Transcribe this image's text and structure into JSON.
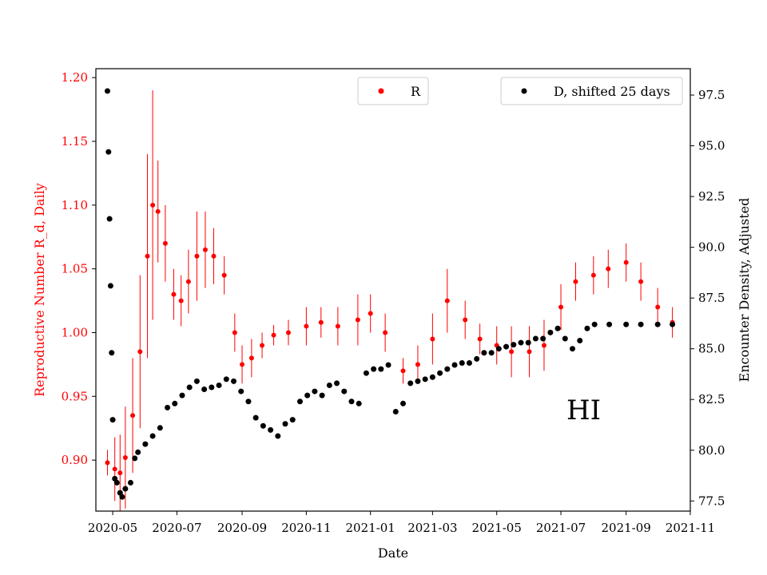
{
  "chart_data": {
    "type": "scatter",
    "xlabel": "Date",
    "x_ticks": [
      "2020-05",
      "2020-07",
      "2020-09",
      "2020-11",
      "2021-01",
      "2021-03",
      "2021-05",
      "2021-07",
      "2021-09",
      "2021-11"
    ],
    "xlim": [
      "2020-04-15",
      "2021-11-01"
    ],
    "left_axis": {
      "label": "Reproductive Number R_d, Daily",
      "color": "#ff0000",
      "ylim": [
        0.86,
        1.207
      ],
      "ticks": [
        "0.90",
        "0.95",
        "1.00",
        "1.05",
        "1.10",
        "1.15",
        "1.20"
      ]
    },
    "right_axis": {
      "label": "Encounter Density, Adjusted",
      "color": "#000000",
      "ylim": [
        77.0,
        98.8
      ],
      "ticks": [
        "77.5",
        "80.0",
        "82.5",
        "85.0",
        "87.5",
        "90.0",
        "92.5",
        "95.0",
        "97.5"
      ]
    },
    "annotation": "HI",
    "legend": [
      {
        "label": "R",
        "color": "#ff0000",
        "placement": "top-center"
      },
      {
        "label": "D, shifted 25 days",
        "color": "#000000",
        "placement": "top-right"
      }
    ],
    "series": [
      {
        "name": "R",
        "axis": "left",
        "color": "#ff0000",
        "error_bars": true,
        "x": [
          "2020-04-26",
          "2020-05-03",
          "2020-05-08",
          "2020-05-13",
          "2020-05-20",
          "2020-05-27",
          "2020-06-03",
          "2020-06-08",
          "2020-06-13",
          "2020-06-20",
          "2020-06-28",
          "2020-07-05",
          "2020-07-12",
          "2020-07-20",
          "2020-07-28",
          "2020-08-05",
          "2020-08-15",
          "2020-08-25",
          "2020-09-01",
          "2020-09-10",
          "2020-09-20",
          "2020-10-01",
          "2020-10-15",
          "2020-11-01",
          "2020-11-15",
          "2020-12-01",
          "2020-12-20",
          "2021-01-01",
          "2021-01-15",
          "2021-02-01",
          "2021-02-15",
          "2021-03-01",
          "2021-03-15",
          "2021-04-01",
          "2021-04-15",
          "2021-05-01",
          "2021-05-15",
          "2021-06-01",
          "2021-06-15",
          "2021-07-01",
          "2021-07-15",
          "2021-08-01",
          "2021-08-15",
          "2021-09-01",
          "2021-09-15",
          "2021-10-01",
          "2021-10-15"
        ],
        "y": [
          0.898,
          0.893,
          0.89,
          0.902,
          0.935,
          0.985,
          1.06,
          1.1,
          1.095,
          1.07,
          1.03,
          1.025,
          1.04,
          1.06,
          1.065,
          1.06,
          1.045,
          1.0,
          0.975,
          0.98,
          0.99,
          0.998,
          1.0,
          1.005,
          1.008,
          1.005,
          1.01,
          1.015,
          1.0,
          0.97,
          0.975,
          0.995,
          1.025,
          1.01,
          0.995,
          0.99,
          0.985,
          0.985,
          0.99,
          1.02,
          1.04,
          1.045,
          1.05,
          1.055,
          1.04,
          1.02,
          1.008
        ],
        "err": [
          0.01,
          0.025,
          0.03,
          0.04,
          0.045,
          0.06,
          0.08,
          0.09,
          0.04,
          0.03,
          0.02,
          0.02,
          0.025,
          0.035,
          0.03,
          0.022,
          0.015,
          0.015,
          0.015,
          0.015,
          0.01,
          0.008,
          0.01,
          0.015,
          0.012,
          0.015,
          0.02,
          0.015,
          0.015,
          0.01,
          0.015,
          0.02,
          0.025,
          0.015,
          0.012,
          0.015,
          0.02,
          0.02,
          0.02,
          0.018,
          0.015,
          0.015,
          0.015,
          0.015,
          0.015,
          0.015,
          0.012
        ]
      },
      {
        "name": "D, shifted 25 days",
        "axis": "right",
        "color": "#000000",
        "x": [
          "2020-04-26",
          "2020-04-27",
          "2020-04-28",
          "2020-04-29",
          "2020-04-30",
          "2020-05-01",
          "2020-05-03",
          "2020-05-05",
          "2020-05-08",
          "2020-05-10",
          "2020-05-13",
          "2020-05-18",
          "2020-05-22",
          "2020-05-25",
          "2020-06-01",
          "2020-06-08",
          "2020-06-15",
          "2020-06-22",
          "2020-06-29",
          "2020-07-06",
          "2020-07-13",
          "2020-07-20",
          "2020-07-27",
          "2020-08-03",
          "2020-08-10",
          "2020-08-17",
          "2020-08-24",
          "2020-08-31",
          "2020-09-07",
          "2020-09-14",
          "2020-09-21",
          "2020-09-28",
          "2020-10-05",
          "2020-10-12",
          "2020-10-19",
          "2020-10-26",
          "2020-11-02",
          "2020-11-09",
          "2020-11-16",
          "2020-11-23",
          "2020-11-30",
          "2020-12-07",
          "2020-12-14",
          "2020-12-21",
          "2020-12-28",
          "2021-01-04",
          "2021-01-11",
          "2021-01-18",
          "2021-01-25",
          "2021-02-01",
          "2021-02-08",
          "2021-02-15",
          "2021-02-22",
          "2021-03-01",
          "2021-03-08",
          "2021-03-15",
          "2021-03-22",
          "2021-03-29",
          "2021-04-05",
          "2021-04-12",
          "2021-04-19",
          "2021-04-26",
          "2021-05-03",
          "2021-05-10",
          "2021-05-17",
          "2021-05-24",
          "2021-05-31",
          "2021-06-07",
          "2021-06-14",
          "2021-06-21",
          "2021-06-28",
          "2021-07-05",
          "2021-07-12",
          "2021-07-19",
          "2021-07-26",
          "2021-08-02",
          "2021-08-16",
          "2021-09-01",
          "2021-09-15",
          "2021-10-01",
          "2021-10-15"
        ],
        "y": [
          97.7,
          94.7,
          91.4,
          88.1,
          84.8,
          81.5,
          78.6,
          78.4,
          77.9,
          77.7,
          78.1,
          78.4,
          79.6,
          79.9,
          80.3,
          80.7,
          81.1,
          82.1,
          82.3,
          82.7,
          83.1,
          83.4,
          83.0,
          83.1,
          83.2,
          83.5,
          83.4,
          82.9,
          82.4,
          81.6,
          81.2,
          81.0,
          80.7,
          81.3,
          81.5,
          82.4,
          82.7,
          82.9,
          82.7,
          83.2,
          83.3,
          82.9,
          82.4,
          82.3,
          83.8,
          84.0,
          84.0,
          84.2,
          81.9,
          82.3,
          83.3,
          83.4,
          83.5,
          83.6,
          83.8,
          84.0,
          84.2,
          84.3,
          84.3,
          84.5,
          84.8,
          84.8,
          85.0,
          85.1,
          85.2,
          85.3,
          85.3,
          85.5,
          85.5,
          85.8,
          86.0,
          85.5,
          85.0,
          85.4,
          86.0,
          86.2,
          86.2,
          86.2,
          86.2,
          86.2,
          86.2
        ]
      }
    ]
  }
}
